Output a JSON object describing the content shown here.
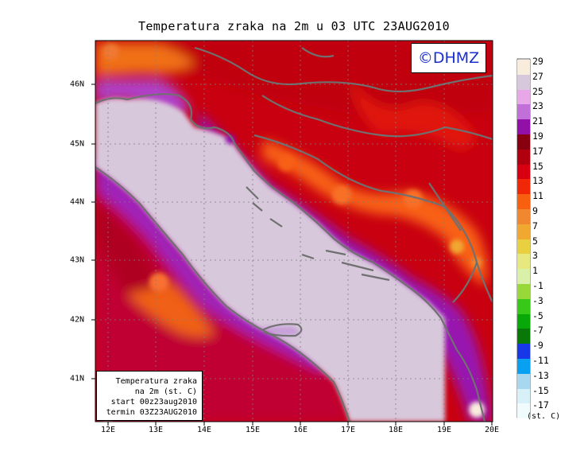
{
  "title": "Temperatura zraka na 2m u 03 UTC 23AUG2010",
  "logo": "©DHMZ",
  "infobox": {
    "line1": "Temperatura zraka",
    "line2": "na 2m (st. C)",
    "line3": "start 00z23aug2010",
    "line4": "termin 03Z23AUG2010"
  },
  "lon_labels": [
    "12E",
    "13E",
    "14E",
    "15E",
    "16E",
    "17E",
    "18E",
    "19E",
    "20E"
  ],
  "lat_labels": [
    "46N",
    "45N",
    "44N",
    "43N",
    "42N",
    "41N"
  ],
  "colorbar": {
    "labels": [
      "29",
      "27",
      "25",
      "23",
      "21",
      "19",
      "17",
      "15",
      "13",
      "11",
      "9",
      "7",
      "5",
      "3",
      "1",
      "-1",
      "-3",
      "-5",
      "-7",
      "-9",
      "-11",
      "-13",
      "-15",
      "-17"
    ],
    "colors": [
      "#f8ecdc",
      "#d8c8dc",
      "#e8a8e8",
      "#c070d8",
      "#9010a8",
      "#880010",
      "#b00010",
      "#d80010",
      "#f02808",
      "#f86010",
      "#f08830",
      "#f0a830",
      "#e8d040",
      "#e8e880",
      "#d8f0a8",
      "#98d838",
      "#38c818",
      "#08a808",
      "#087808",
      "#1838e8",
      "#08a0f0",
      "#a8d8f0",
      "#d8f0f8",
      "#f0fcfc"
    ],
    "unit": "(st. C)"
  },
  "map_colors": {
    "sea": "#d8c8dc",
    "coast": "#707070",
    "grid": "#808080"
  }
}
